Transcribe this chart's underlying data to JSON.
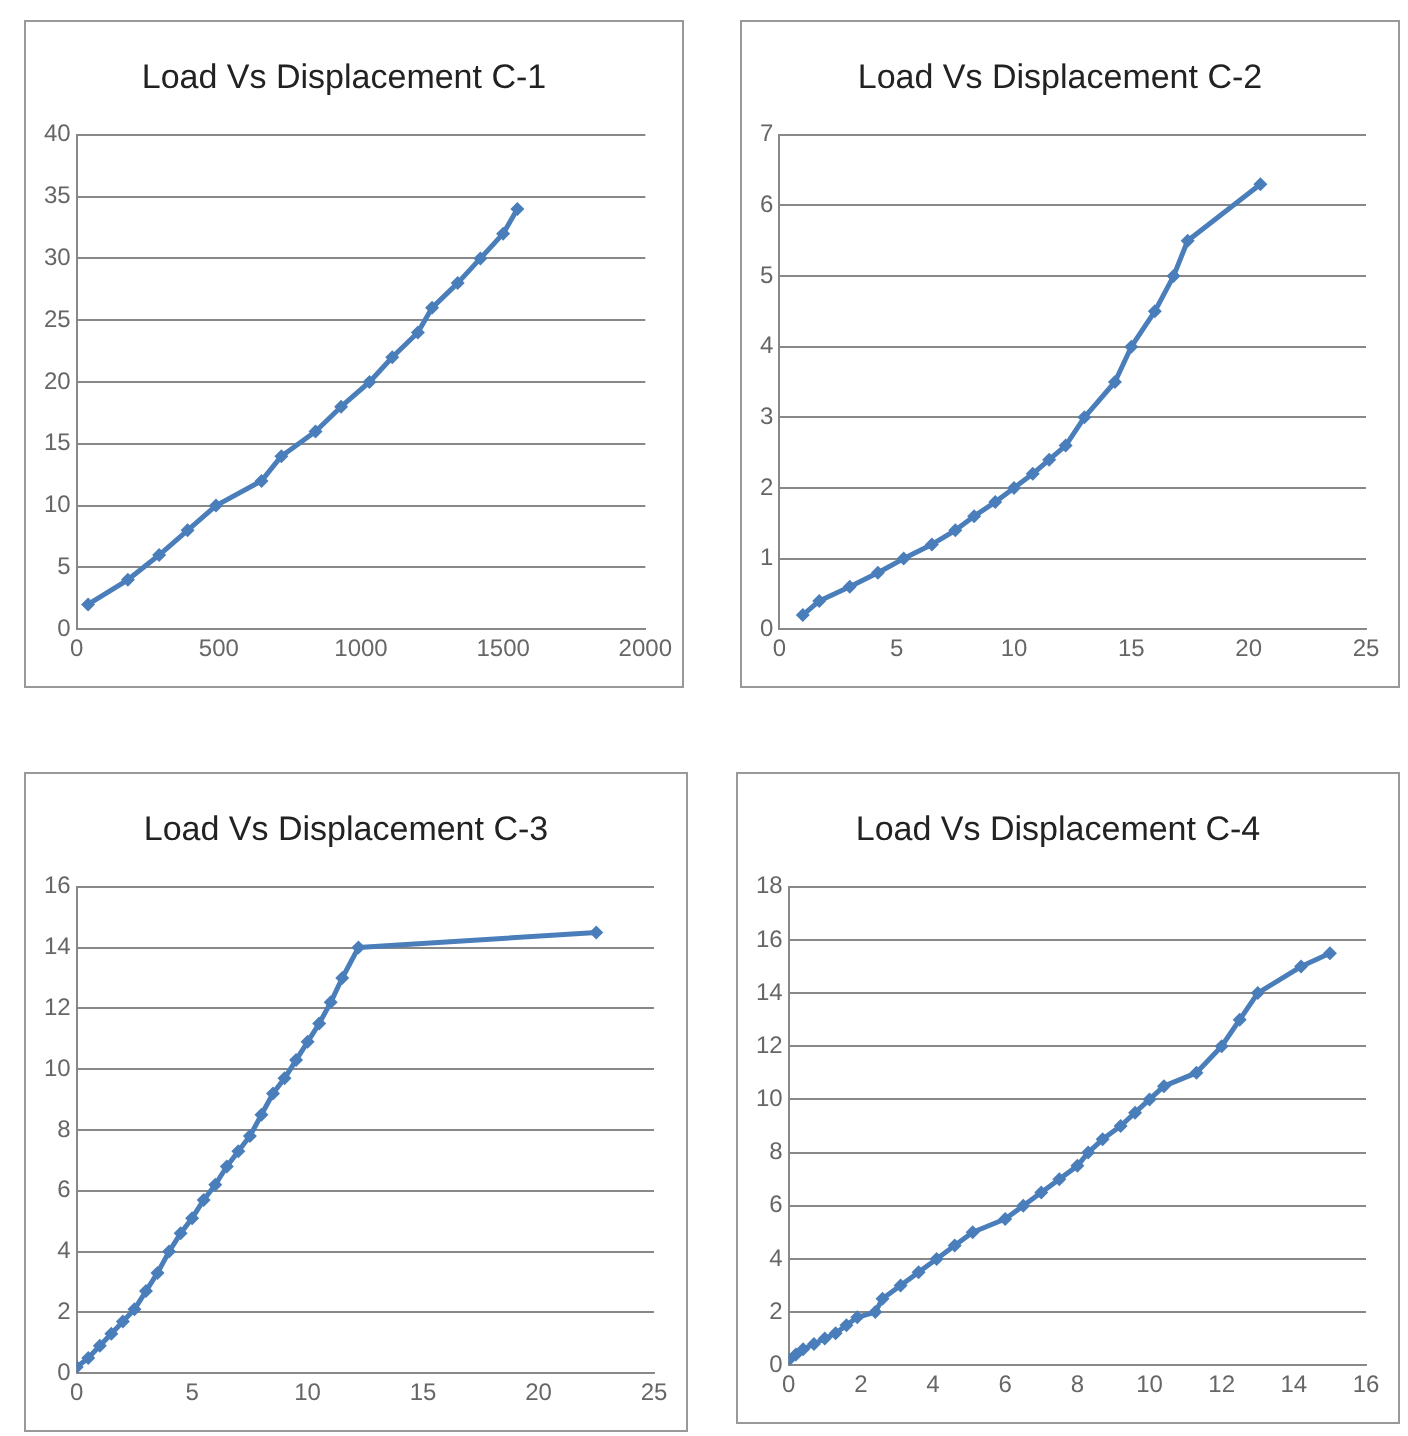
{
  "chart_data": [
    {
      "type": "line",
      "title": "Load Vs Displacement C-1",
      "xlim": [
        0,
        2000
      ],
      "xticks": [
        0,
        500,
        1000,
        1500,
        2000
      ],
      "ylim": [
        0,
        40
      ],
      "yticks": [
        0,
        5,
        10,
        15,
        20,
        25,
        30,
        35,
        40
      ],
      "grid": "y",
      "marker": "diamond",
      "legend": false,
      "series": [
        {
          "color": "#4a7ebb",
          "x": [
            40,
            180,
            290,
            390,
            490,
            650,
            720,
            840,
            930,
            1030,
            1110,
            1200,
            1250,
            1340,
            1420,
            1500,
            1550
          ],
          "values": [
            2,
            4,
            6,
            8,
            10,
            12,
            14,
            16,
            18,
            20,
            22,
            24,
            26,
            28,
            30,
            32,
            34
          ]
        }
      ]
    },
    {
      "type": "line",
      "title": "Load Vs Displacement C-2",
      "xlim": [
        0,
        25
      ],
      "xticks": [
        0,
        5,
        10,
        15,
        20,
        25
      ],
      "ylim": [
        0,
        7
      ],
      "yticks": [
        0,
        1,
        2,
        3,
        4,
        5,
        6,
        7
      ],
      "grid": "y",
      "marker": "diamond",
      "legend": false,
      "series": [
        {
          "color": "#4a7ebb",
          "x": [
            1,
            1.7,
            3,
            4.2,
            5.3,
            6.5,
            7.5,
            8.3,
            9.2,
            10,
            10.8,
            11.5,
            12.2,
            13,
            14.3,
            15,
            16,
            16.8,
            17.4,
            20.5
          ],
          "values": [
            0.2,
            0.4,
            0.6,
            0.8,
            1,
            1.2,
            1.4,
            1.6,
            1.8,
            2,
            2.2,
            2.4,
            2.6,
            3,
            3.5,
            4,
            4.5,
            5,
            5.5,
            6.3
          ]
        }
      ]
    },
    {
      "type": "line",
      "title": "Load Vs Displacement C-3",
      "xlim": [
        0,
        25
      ],
      "xticks": [
        0,
        5,
        10,
        15,
        20,
        25
      ],
      "ylim": [
        0,
        16
      ],
      "yticks": [
        0,
        2,
        4,
        6,
        8,
        10,
        12,
        14,
        16
      ],
      "grid": "y",
      "marker": "diamond",
      "legend": false,
      "series": [
        {
          "color": "#4a7ebb",
          "x": [
            0,
            0.5,
            1,
            1.5,
            2,
            2.5,
            3,
            3.5,
            4,
            4.5,
            5,
            5.5,
            6,
            6.5,
            7,
            7.5,
            8,
            8.5,
            9,
            9.5,
            10,
            10.5,
            11,
            11.5,
            12.2,
            22.5
          ],
          "values": [
            0.2,
            0.5,
            0.9,
            1.3,
            1.7,
            2.1,
            2.7,
            3.3,
            4,
            4.6,
            5.1,
            5.7,
            6.2,
            6.8,
            7.3,
            7.8,
            8.5,
            9.2,
            9.7,
            10.3,
            10.9,
            11.5,
            12.2,
            13,
            14,
            14.5
          ]
        }
      ]
    },
    {
      "type": "line",
      "title": "Load Vs Displacement C-4",
      "xlim": [
        0,
        16
      ],
      "xticks": [
        0,
        2,
        4,
        6,
        8,
        10,
        12,
        14,
        16
      ],
      "ylim": [
        0,
        18
      ],
      "yticks": [
        0,
        2,
        4,
        6,
        8,
        10,
        12,
        14,
        16,
        18
      ],
      "grid": "y",
      "marker": "diamond",
      "legend": false,
      "series": [
        {
          "color": "#4a7ebb",
          "x": [
            0,
            0.2,
            0.4,
            0.7,
            1,
            1.3,
            1.6,
            1.9,
            2.4,
            2.6,
            3.1,
            3.6,
            4.1,
            4.6,
            5.1,
            6,
            6.5,
            7,
            7.5,
            8,
            8.3,
            8.7,
            9.2,
            9.6,
            10,
            10.4,
            11.3,
            12,
            12.5,
            13,
            14.2,
            15
          ],
          "values": [
            0.2,
            0.4,
            0.6,
            0.8,
            1,
            1.2,
            1.5,
            1.8,
            2,
            2.5,
            3,
            3.5,
            4,
            4.5,
            5,
            5.5,
            6,
            6.5,
            7,
            7.5,
            8,
            8.5,
            9,
            9.5,
            10,
            10.5,
            11,
            12,
            13,
            14,
            15,
            15.5
          ]
        }
      ]
    }
  ]
}
